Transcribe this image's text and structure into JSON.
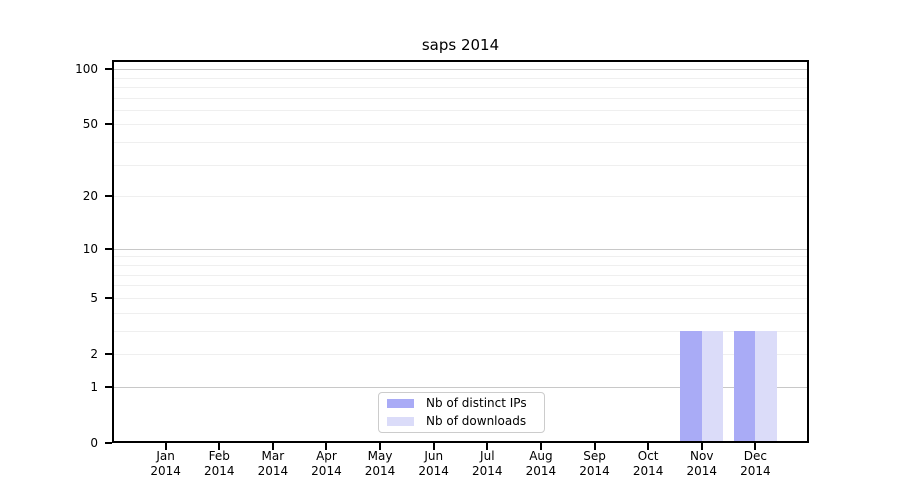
{
  "chart_data": {
    "type": "bar",
    "title": "saps 2014",
    "x": {
      "months": [
        "Jan",
        "Feb",
        "Mar",
        "Apr",
        "May",
        "Jun",
        "Jul",
        "Aug",
        "Sep",
        "Oct",
        "Nov",
        "Dec"
      ],
      "year": "2014"
    },
    "y_axis": {
      "scale": "log1p",
      "tick_values": [
        0,
        1,
        2,
        5,
        10,
        20,
        50,
        100
      ],
      "tick_labels": [
        "0",
        "1",
        "2",
        "5",
        "10",
        "20",
        "50",
        "100"
      ],
      "ylim": [
        0,
        112
      ],
      "grid_decade_values": [
        1,
        10,
        100
      ],
      "grid_minor_values": [
        2,
        3,
        4,
        5,
        6,
        7,
        8,
        9,
        20,
        30,
        40,
        50,
        60,
        70,
        80,
        90
      ]
    },
    "series": [
      {
        "name": "Nb of distinct IPs",
        "color": "#a9abf6",
        "values": [
          0,
          0,
          0,
          0,
          0,
          0,
          0,
          0,
          0,
          0,
          3,
          3
        ]
      },
      {
        "name": "Nb of downloads",
        "color": "#dbdcf9",
        "values": [
          0,
          0,
          0,
          0,
          0,
          0,
          0,
          0,
          0,
          0,
          3,
          3
        ]
      }
    ],
    "legend": {
      "position": "lower center"
    },
    "grid": true,
    "colors": {
      "spine": "#000000",
      "grid_decade": "#c8c8c8",
      "grid_minor": "#efefef",
      "text": "#000000"
    }
  }
}
